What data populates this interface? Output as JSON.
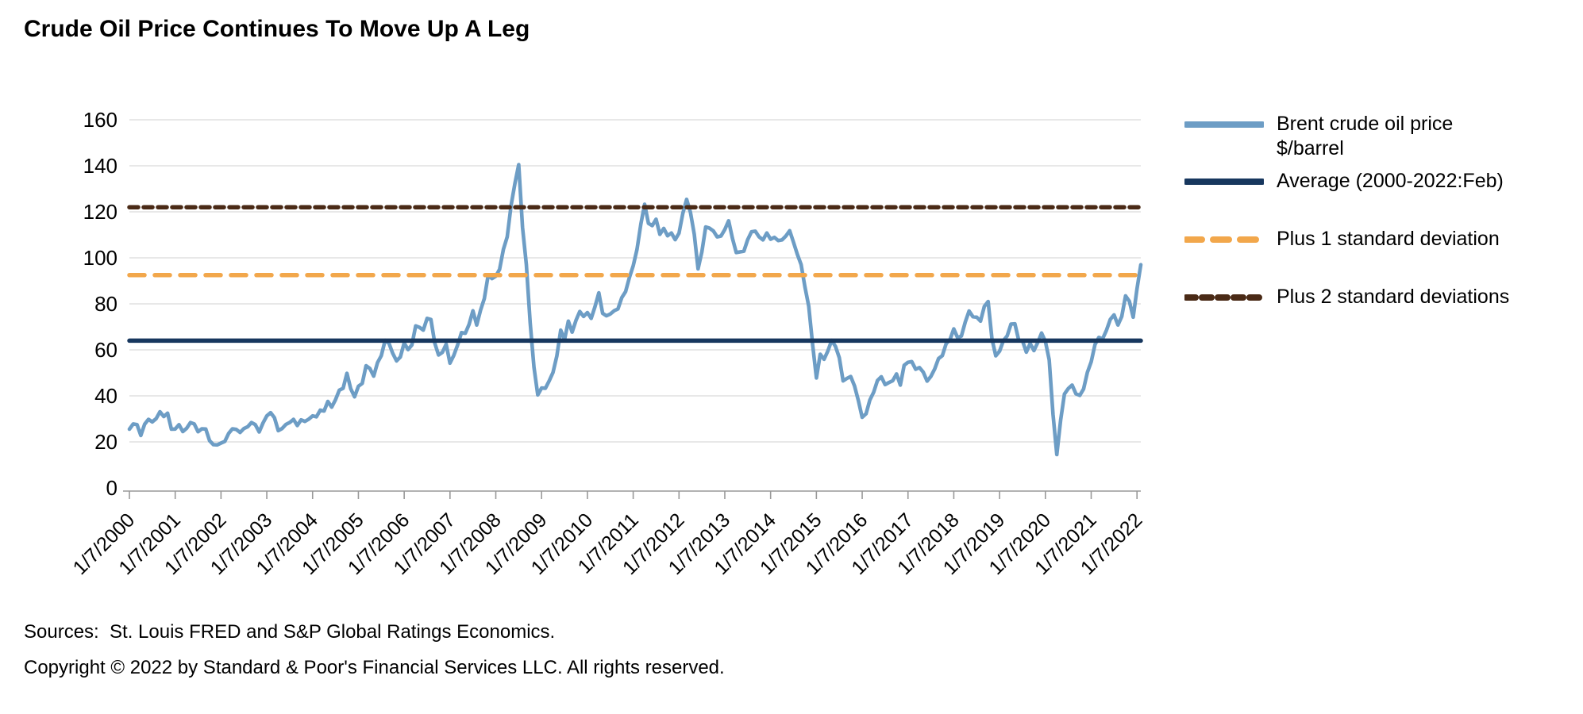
{
  "title": "Crude Oil Price Continues To Move Up A Leg",
  "footer": {
    "sources": "Sources:  St. Louis FRED and S&P Global Ratings Economics.",
    "copyright": "Copyright © 2022 by Standard & Poor's Financial Services LLC. All rights reserved."
  },
  "colors": {
    "background": "#ffffff",
    "gridline": "#d9d9d9",
    "axis": "#999999",
    "text": "#000000"
  },
  "chart_data": {
    "type": "line",
    "title": "Crude Oil Price Continues To Move Up A Leg",
    "xlabel": "",
    "ylabel": "",
    "ylim": [
      0,
      160
    ],
    "ytick_step": 20,
    "grid": true,
    "legend_position": "right",
    "x_tick_labels": [
      "1/7/2000",
      "1/7/2001",
      "1/7/2002",
      "1/7/2003",
      "1/7/2004",
      "1/7/2005",
      "1/7/2006",
      "1/7/2007",
      "1/7/2008",
      "1/7/2009",
      "1/7/2010",
      "1/7/2011",
      "1/7/2012",
      "1/7/2013",
      "1/7/2014",
      "1/7/2015",
      "1/7/2016",
      "1/7/2017",
      "1/7/2018",
      "1/7/2019",
      "1/7/2020",
      "1/7/2021",
      "1/7/2022"
    ],
    "series": [
      {
        "name": "Brent crude oil price $/barrel",
        "color": "#6d9dc5",
        "style": "solid",
        "start": "Jan 2000",
        "end": "Feb 2022",
        "frequency": "monthly",
        "values": [
          25.5,
          27.8,
          27.5,
          22.8,
          27.7,
          29.8,
          28.7,
          30.1,
          33.1,
          31.0,
          32.5,
          25.5,
          25.6,
          27.5,
          24.5,
          25.9,
          28.4,
          27.8,
          24.4,
          25.7,
          25.6,
          20.5,
          18.8,
          18.7,
          19.5,
          20.2,
          23.7,
          25.7,
          25.4,
          24.1,
          25.8,
          26.6,
          28.4,
          27.5,
          24.3,
          28.2,
          31.3,
          32.7,
          30.5,
          24.9,
          25.8,
          27.6,
          28.4,
          29.8,
          27.1,
          29.6,
          28.9,
          29.9,
          31.3,
          30.9,
          33.8,
          33.4,
          37.6,
          35.1,
          38.3,
          42.5,
          43.3,
          49.8,
          43.1,
          39.6,
          44.2,
          45.4,
          53.1,
          51.9,
          48.6,
          54.4,
          57.5,
          64.1,
          62.9,
          58.5,
          55.2,
          56.9,
          63.0,
          60.1,
          62.1,
          70.4,
          69.8,
          68.6,
          73.7,
          73.2,
          63.0,
          57.8,
          58.9,
          62.5,
          54.2,
          57.6,
          62.1,
          67.5,
          67.2,
          71.1,
          77.0,
          70.8,
          77.2,
          82.3,
          92.4,
          91.0,
          92.0,
          95.0,
          103.7,
          109.1,
          122.8,
          132.3,
          140.5,
          113.2,
          97.1,
          71.9,
          52.5,
          40.4,
          43.4,
          43.3,
          46.5,
          50.2,
          57.3,
          68.6,
          64.4,
          72.5,
          67.7,
          72.8,
          76.7,
          74.5,
          76.2,
          73.7,
          78.8,
          84.8,
          75.9,
          74.8,
          75.6,
          77.0,
          77.8,
          82.7,
          85.3,
          91.4,
          96.5,
          103.7,
          114.6,
          123.3,
          115.0,
          114.0,
          116.8,
          110.2,
          112.8,
          109.6,
          110.8,
          107.9,
          110.7,
          119.3,
          125.4,
          119.8,
          110.3,
          95.2,
          102.6,
          113.4,
          112.9,
          111.7,
          109.1,
          109.5,
          112.3,
          116.1,
          108.5,
          102.3,
          102.6,
          102.9,
          107.9,
          111.3,
          111.6,
          109.1,
          107.8,
          110.8,
          108.1,
          108.9,
          107.5,
          107.8,
          109.5,
          111.8,
          106.8,
          101.6,
          97.1,
          87.4,
          79.0,
          62.3,
          47.8,
          58.1,
          55.9,
          59.5,
          64.1,
          61.5,
          56.6,
          46.5,
          47.6,
          48.4,
          44.3,
          38.0,
          30.7,
          32.2,
          38.2,
          41.6,
          46.7,
          48.3,
          44.9,
          45.8,
          46.6,
          49.5,
          44.7,
          53.3,
          54.6,
          54.9,
          51.6,
          52.3,
          50.3,
          46.4,
          48.5,
          51.7,
          56.2,
          57.5,
          62.7,
          64.4,
          69.1,
          65.3,
          66.0,
          72.1,
          76.9,
          74.4,
          74.2,
          72.5,
          78.9,
          81.0,
          64.8,
          57.4,
          59.4,
          64.0,
          66.1,
          71.2,
          71.3,
          64.2,
          63.9,
          59.0,
          62.8,
          59.7,
          63.2,
          67.3,
          63.7,
          55.7,
          32.0,
          14.5,
          29.4,
          40.8,
          43.2,
          44.7,
          40.9,
          40.2,
          43.0,
          50.2,
          54.8,
          62.3,
          65.4,
          64.8,
          68.5,
          73.2,
          75.2,
          70.8,
          74.5,
          83.5,
          81.1,
          74.2,
          86.5,
          97.0
        ]
      }
    ],
    "reference_lines": [
      {
        "name": "Average (2000-2022:Feb)",
        "value": 64,
        "color": "#17375e",
        "style": "solid"
      },
      {
        "name": "Plus 1 standard deviation",
        "value": 92.5,
        "color": "#f2a74b",
        "style": "dashed"
      },
      {
        "name": "Plus 2 standard deviations",
        "value": 122,
        "color": "#4a2a16",
        "style": "dashed-small"
      }
    ],
    "legend": {
      "items": [
        {
          "line1": "Brent crude oil price",
          "line2": "$/barrel",
          "swatch": "series-0"
        },
        {
          "line1": "Average (2000-2022:Feb)",
          "swatch": "ref-0"
        },
        {
          "line1": "Plus 1 standard deviation",
          "swatch": "ref-1"
        },
        {
          "line1": "Plus 2 standard deviations",
          "swatch": "ref-2"
        }
      ]
    }
  }
}
